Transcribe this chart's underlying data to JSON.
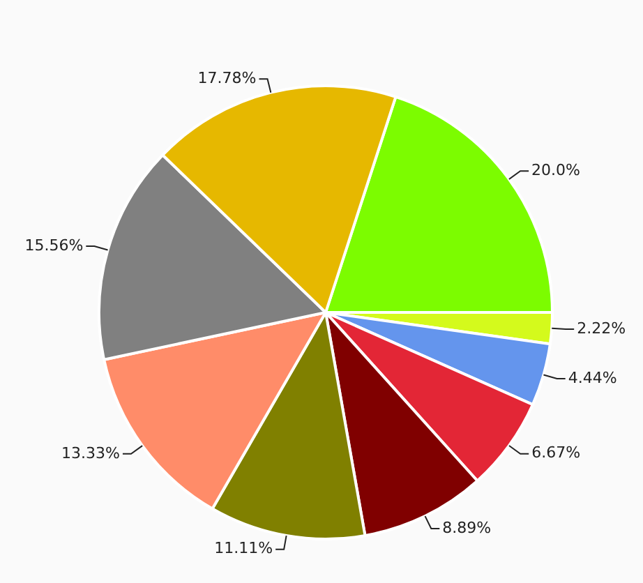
{
  "chart_data": {
    "type": "pie",
    "categories": [
      null,
      null,
      null,
      null,
      null,
      null,
      null,
      null,
      null
    ],
    "values": [
      20.0,
      2.22,
      4.44,
      6.67,
      8.89,
      11.11,
      13.33,
      15.56,
      17.78
    ],
    "value_labels": [
      "20.0%",
      "2.22%",
      "4.44%",
      "6.67%",
      "8.89%",
      "11.11%",
      "13.33%",
      "15.56%",
      "17.78%"
    ],
    "colors": [
      "#7cfc00",
      "#d4fa1c",
      "#6495ed",
      "#e32636",
      "#800000",
      "#808000",
      "#ff8c69",
      "#808080",
      "#e6b800"
    ],
    "legend": false
  }
}
